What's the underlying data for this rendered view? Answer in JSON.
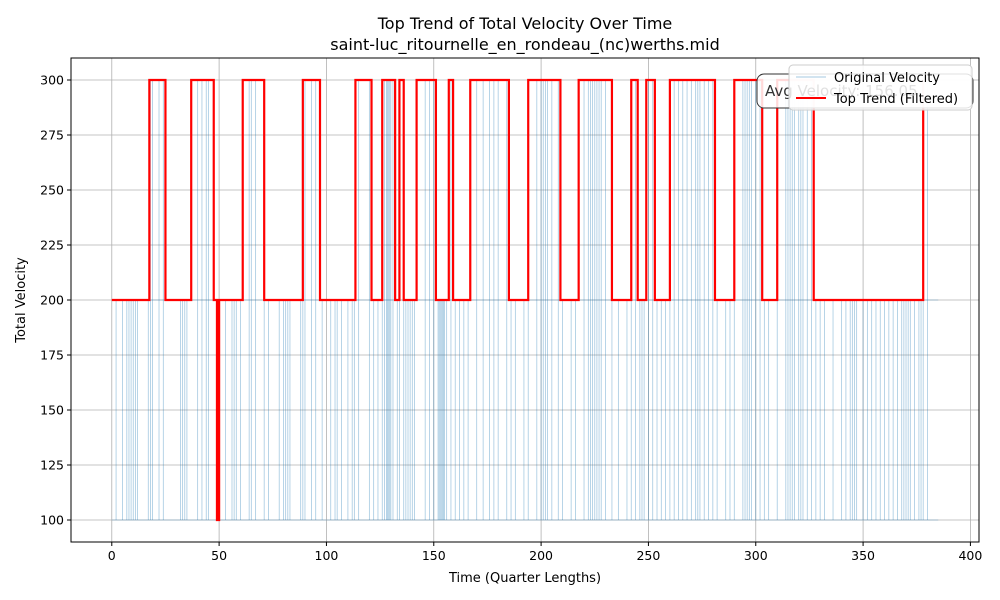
{
  "chart_data": {
    "type": "line",
    "title": "Top Trend of Total Velocity Over Time",
    "subtitle": "saint-luc_ritournelle_en_rondeau_(nc)werths.mid",
    "xlabel": "Time (Quarter Lengths)",
    "ylabel": "Total Velocity",
    "xlim": [
      -19,
      404
    ],
    "ylim": [
      90,
      310
    ],
    "xticks": [
      0,
      50,
      100,
      150,
      200,
      250,
      300,
      350,
      400
    ],
    "yticks": [
      100,
      125,
      150,
      175,
      200,
      225,
      250,
      275,
      300
    ],
    "grid": true,
    "legend_position": "top-right",
    "annotation": {
      "text": "Avg Velocity: 156.05"
    },
    "series": [
      {
        "name": "Original Velocity",
        "color": "#1f77b4",
        "style": "thin-line",
        "x_range": [
          0,
          385
        ],
        "values_levels": [
          100,
          200,
          300
        ],
        "low_value": 100,
        "high_value": 300,
        "dense_spike_x": [
          2,
          5,
          7,
          8,
          9,
          10,
          11,
          12,
          17,
          18,
          19,
          22,
          24,
          32,
          33,
          34,
          35,
          40,
          42,
          44,
          45,
          49,
          50,
          53,
          56,
          57,
          58,
          60,
          64,
          65,
          67,
          71,
          73,
          78,
          80,
          81,
          82,
          83,
          88,
          89,
          90,
          93,
          95,
          98,
          102,
          104,
          105,
          107,
          110,
          112,
          113,
          115,
          120,
          122,
          124,
          126,
          127,
          128,
          128.5,
          129,
          129.5,
          130,
          131,
          133,
          134,
          136,
          137,
          138,
          139,
          140,
          141,
          146,
          148,
          150,
          152,
          152.5,
          153,
          153.5,
          154,
          154.5,
          155,
          156,
          158,
          160,
          162,
          164,
          166,
          170,
          173,
          176,
          178,
          180,
          184,
          186,
          188,
          192,
          194,
          198,
          200,
          201,
          202,
          203,
          205,
          208,
          210,
          214,
          216,
          220,
          222,
          223,
          224,
          225,
          226,
          227,
          228,
          230,
          233,
          236,
          240,
          242,
          244,
          246,
          247,
          248,
          250,
          252,
          254,
          256,
          258,
          260,
          262,
          264,
          266,
          268,
          270,
          272,
          273,
          274,
          276,
          278,
          280,
          282,
          286,
          288,
          290,
          294,
          295,
          296,
          297,
          298,
          300,
          302,
          304,
          306,
          310,
          314,
          315,
          316,
          317,
          318,
          320,
          321,
          322,
          324,
          326,
          328,
          330,
          332,
          336,
          340,
          342,
          344,
          345,
          346,
          347,
          350,
          352,
          354,
          356,
          358,
          360,
          362,
          364,
          366,
          368,
          369,
          370,
          371,
          372,
          374,
          376,
          377,
          378,
          380
        ]
      },
      {
        "name": "Top Trend (Filtered)",
        "color": "#ff0000",
        "style": "step",
        "x": [
          0,
          17.5,
          25,
          37,
          47.5,
          49,
          50,
          61,
          71,
          89,
          97,
          113.5,
          121,
          126,
          132,
          134,
          136,
          142,
          151,
          157,
          159,
          167,
          185,
          194,
          209,
          217.5,
          233,
          242,
          245,
          249,
          253,
          260,
          281,
          290,
          303,
          310,
          327,
          353,
          361,
          378
        ],
        "y": [
          200,
          300,
          200,
          300,
          200,
          100,
          200,
          300,
          200,
          300,
          200,
          300,
          200,
          300,
          200,
          300,
          200,
          300,
          200,
          300,
          200,
          300,
          200,
          300,
          200,
          300,
          200,
          300,
          200,
          300,
          200,
          300,
          200,
          300,
          200,
          300,
          200,
          200,
          200,
          300
        ]
      }
    ]
  }
}
